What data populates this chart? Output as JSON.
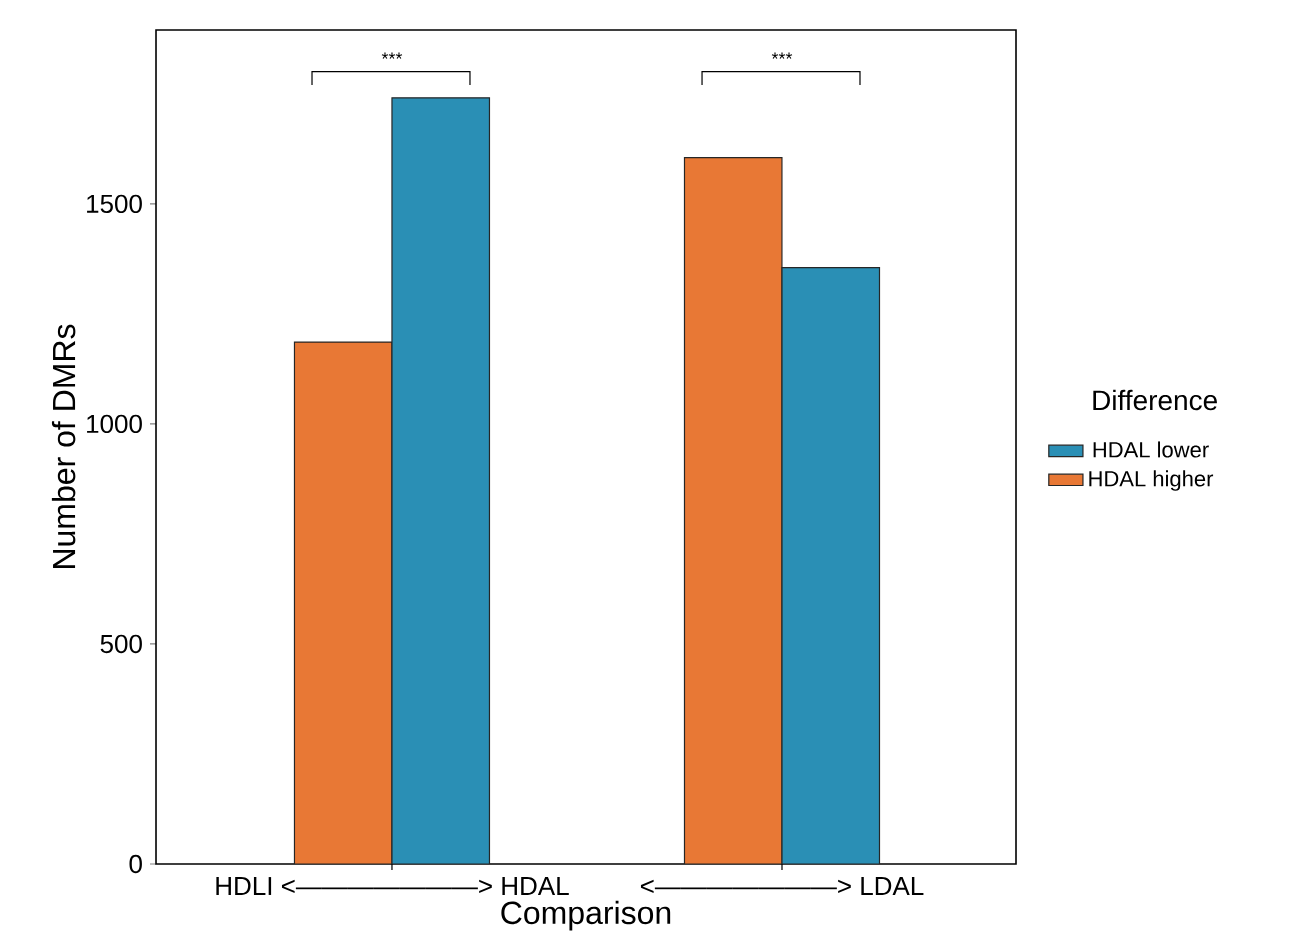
{
  "chart_data": {
    "type": "bar",
    "xlabel": "Comparison",
    "ylabel": "Number of DMRs",
    "legend_title": "Difference",
    "categories": [
      "HDLI <———————> HDAL",
      "<———————> LDAL"
    ],
    "series": [
      {
        "name": "HDAL higher",
        "color": "#e87835",
        "values": [
          1186,
          1605
        ]
      },
      {
        "name": "HDAL lower",
        "color": "#2a8fb5",
        "values": [
          1741,
          1355
        ]
      }
    ],
    "ylim": [
      0,
      1895
    ],
    "yticks": [
      0,
      500,
      1000,
      1500
    ],
    "legend": "right",
    "grid": false,
    "annotations": [
      "***",
      "***"
    ]
  }
}
